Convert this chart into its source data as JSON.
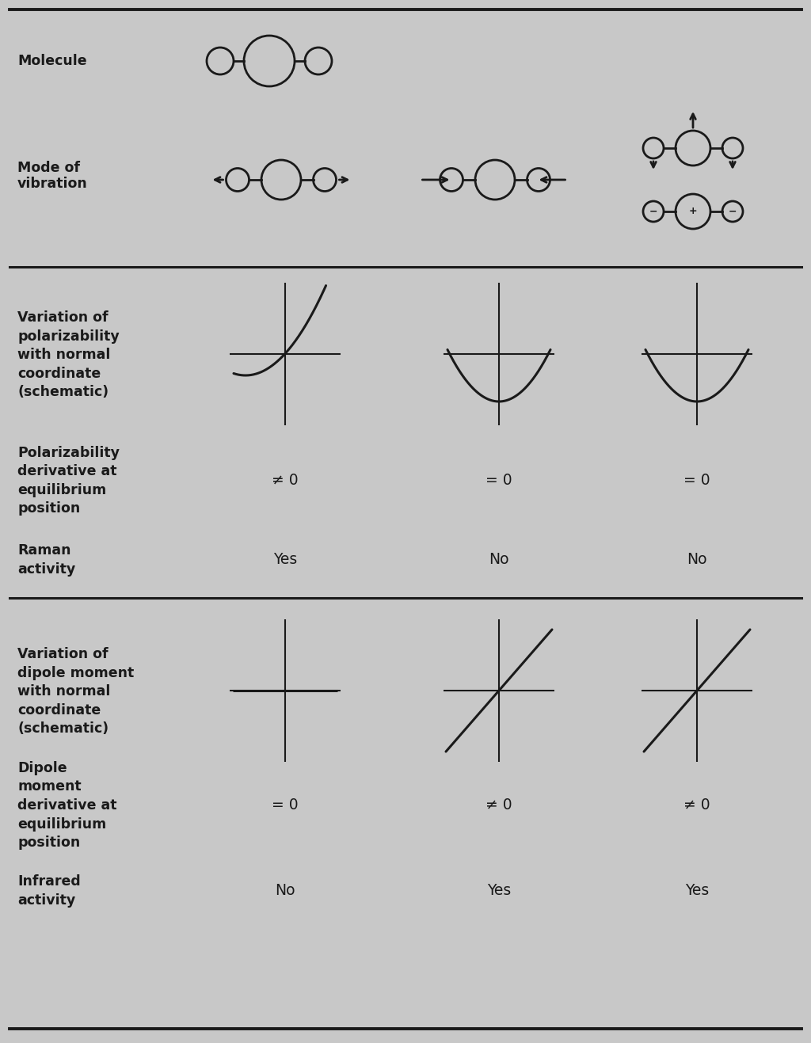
{
  "bg_color": "#c8c8c8",
  "text_color": "#1a1a1a",
  "line_color": "#1a1a1a",
  "label_fontsize": 12.5,
  "value_fontsize": 13.5,
  "col1_polderiv": "≠ 0",
  "col2_polderiv": "= 0",
  "col3_polderiv": "= 0",
  "col1_raman": "Yes",
  "col2_raman": "No",
  "col3_raman": "No",
  "col1_dipderiv": "= 0",
  "col2_dipderiv": "≠ 0",
  "col3_dipderiv": "≠ 0",
  "col1_ir": "No",
  "col2_ir": "Yes",
  "col3_ir": "Yes",
  "fig_width": 10.24,
  "fig_height": 13.17,
  "dpi": 100
}
